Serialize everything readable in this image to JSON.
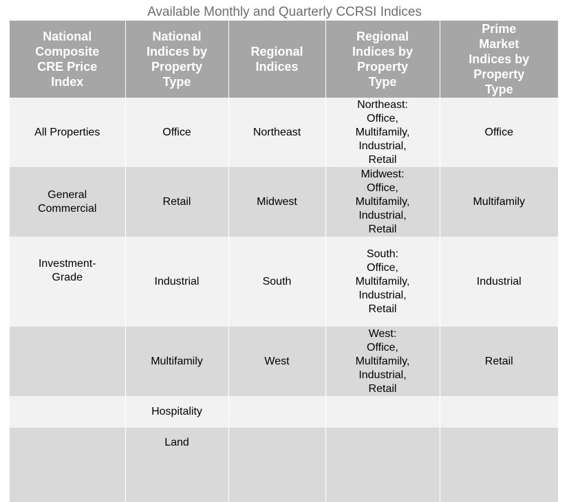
{
  "title": "Available Monthly and Quarterly CCRSI Indices",
  "headers": [
    "National\nComposite\nCRE Price\nIndex",
    "National\nIndices by\nProperty\nType",
    "Regional\nIndices",
    "Regional\nIndices by\nProperty\nType",
    "Prime\nMarket\nIndices by\nProperty\nType"
  ],
  "rows": [
    [
      "All Properties",
      "Office",
      "Northeast",
      "Northeast:\nOffice,\nMultifamily,\nIndustrial,\nRetail",
      "Office"
    ],
    [
      "General\nCommercial",
      "Retail",
      "Midwest",
      "Midwest:\nOffice,\nMultifamily,\nIndustrial,\nRetail",
      "Multifamily"
    ],
    [
      "Investment-\nGrade",
      "Industrial",
      "South",
      "South:\nOffice,\nMultifamily,\nIndustrial,\nRetail",
      "Industrial"
    ],
    [
      "",
      "Multifamily",
      "West",
      "West:\nOffice,\nMultifamily,\nIndustrial,\nRetail",
      "Retail"
    ],
    [
      "",
      "Hospitality",
      "",
      "",
      ""
    ],
    [
      "",
      "Land",
      "",
      "",
      ""
    ]
  ],
  "colors": {
    "header_bg": "#a6a6a6",
    "header_text": "#ffffff",
    "row_light": "#f2f2f2",
    "row_dark": "#d9d9d9",
    "title_text": "#6e6e6e"
  }
}
